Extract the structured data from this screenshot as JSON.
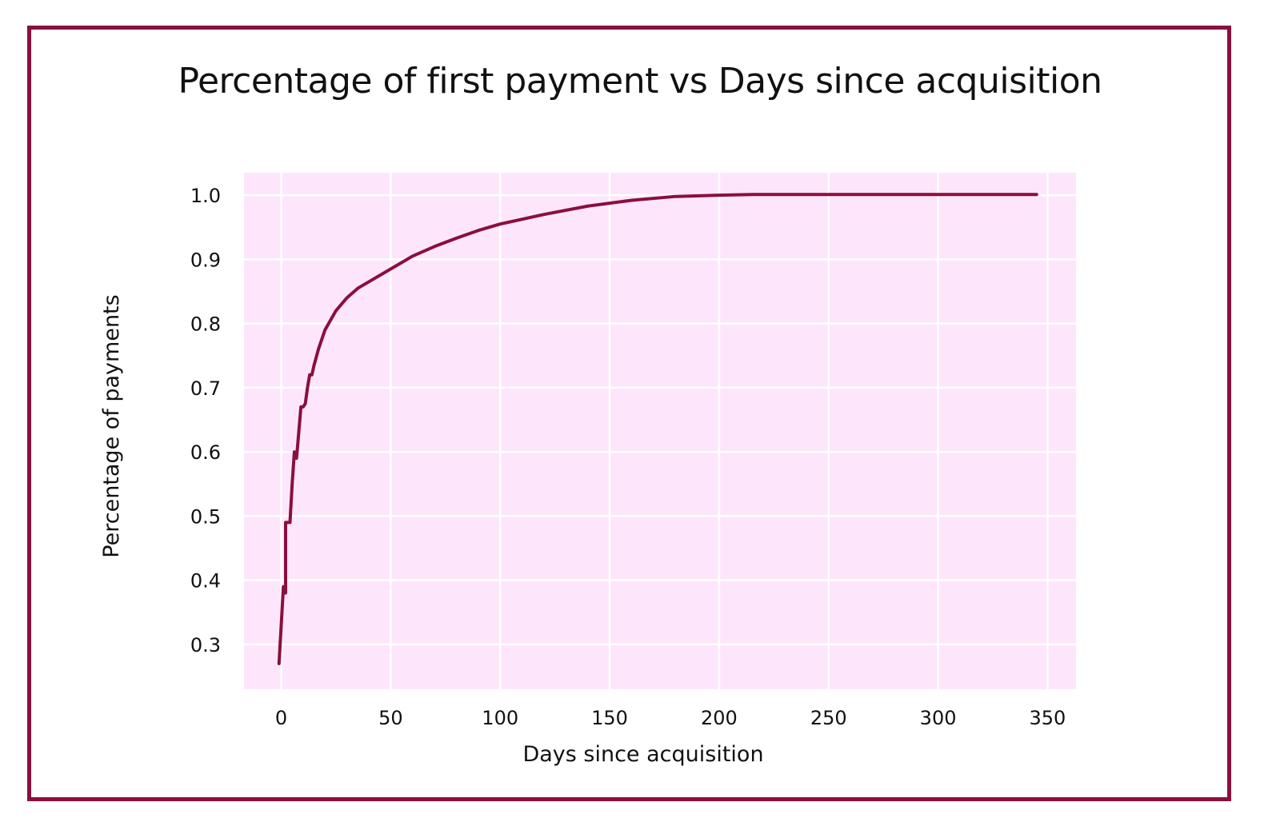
{
  "chart_data": {
    "type": "line",
    "title": "Percentage of first payment vs Days since acquisition",
    "xlabel": "Days since acquisition",
    "ylabel": "Percentage of payments",
    "xlim": [
      -17,
      363
    ],
    "ylim": [
      0.23,
      1.035
    ],
    "x_ticks": [
      0,
      50,
      100,
      150,
      200,
      250,
      300,
      350
    ],
    "x_tick_labels": [
      "0",
      "50",
      "100",
      "150",
      "200",
      "250",
      "300",
      "350"
    ],
    "y_ticks": [
      0.3,
      0.4,
      0.5,
      0.6,
      0.7,
      0.8,
      0.9,
      1.0
    ],
    "y_tick_labels": [
      "0.3",
      "0.4",
      "0.5",
      "0.6",
      "0.7",
      "0.8",
      "0.9",
      "1.0"
    ],
    "grid": true,
    "colors": {
      "line": "#8a0f3e",
      "plot_background": "#fde6fb",
      "grid": "#ffffff",
      "frame": "#8a0f3e"
    },
    "series": [
      {
        "x": [
          -1,
          0,
          1,
          2,
          2,
          3,
          4,
          5,
          6,
          7,
          8,
          9,
          10,
          11,
          12,
          13,
          14,
          15,
          17,
          20,
          25,
          30,
          35,
          40,
          50,
          60,
          70,
          80,
          90,
          100,
          120,
          140,
          160,
          180,
          200,
          215,
          250,
          300,
          345
        ],
        "y": [
          0.27,
          0.33,
          0.39,
          0.38,
          0.49,
          0.49,
          0.49,
          0.55,
          0.6,
          0.59,
          0.63,
          0.67,
          0.67,
          0.675,
          0.7,
          0.72,
          0.72,
          0.735,
          0.76,
          0.79,
          0.82,
          0.84,
          0.855,
          0.865,
          0.885,
          0.905,
          0.92,
          0.933,
          0.945,
          0.955,
          0.97,
          0.983,
          0.992,
          0.998,
          1.0,
          1.001,
          1.001,
          1.001,
          1.001
        ]
      }
    ]
  }
}
